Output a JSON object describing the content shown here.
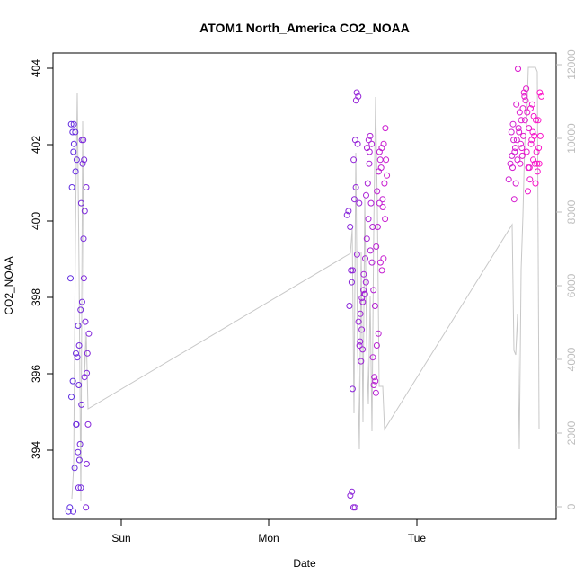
{
  "chart_data": {
    "type": "scatter",
    "title": "ATOM1 North_America CO2_NOAA",
    "xlabel": "Date",
    "ylabel": "CO2_NOAA",
    "x_ticks": [
      "Sun",
      "Mon",
      "Tue"
    ],
    "y_ticks": [
      "394",
      "396",
      "398",
      "400",
      "402",
      "404"
    ],
    "y_ticks_right": [
      "0",
      "2000",
      "4000",
      "6000",
      "8000",
      "10000",
      "12000"
    ],
    "ylim": [
      392.5,
      404.3
    ],
    "ylim_right": [
      0,
      12000
    ],
    "colors": {
      "start": "#5b2be0",
      "end": "#ff17c8",
      "line": "#c8c8c8",
      "right_axis": "#bdbdbd",
      "axis": "#000000"
    },
    "series": [
      {
        "values": [
          392.7,
          392.8,
          395.6,
          396.0,
          398.6,
          400.9,
          401.8,
          402.5,
          402.3,
          402.0,
          401.3,
          392.7,
          393.8,
          394.9,
          402.5,
          402.3,
          401.6,
          397.4,
          396.7,
          396.6,
          395.9,
          394.9,
          394.2,
          394.0,
          393.3,
          393.3,
          394.4,
          395.4,
          396.9,
          397.8,
          398.0,
          399.6,
          400.5,
          401.5,
          401.6,
          402.1,
          402.1,
          400.3,
          400.9,
          398.6,
          397.5,
          396.2,
          396.1,
          392.8,
          396.7,
          397.2,
          393.9,
          394.9
        ]
      },
      {
        "values": [
          400.2,
          400.3,
          399.9,
          398.5,
          397.9,
          398.8,
          395.8,
          393.1,
          393.2,
          392.8,
          392.8,
          398.8,
          400.6,
          400.9,
          401.6,
          402.1,
          403.3,
          403.2,
          403.1,
          402.0,
          400.5,
          399.2,
          397.5,
          397.0,
          397.3,
          396.9,
          396.5,
          396.8,
          397.7,
          398.1,
          398.3,
          398.2,
          398.0,
          398.2,
          398.5,
          398.7,
          399.1,
          399.6,
          400.1,
          400.7,
          401.0,
          401.5,
          401.9,
          402.1,
          402.2,
          402.0,
          401.8,
          400.5,
          399.9,
          399.3,
          399.0,
          398.3,
          397.9,
          396.6,
          396.1,
          395.7,
          395.9,
          396.0,
          396.9,
          397.2,
          399.4,
          399.9,
          400.5,
          400.8,
          401.3,
          401.6,
          401.9,
          401.8,
          401.4,
          400.6,
          399.0,
          398.8,
          399.1,
          400.1,
          400.4,
          401.0,
          401.6,
          402.0,
          402.4,
          401.2
        ]
      },
      {
        "values": [
          401.1,
          401.5,
          401.7,
          402.1,
          402.3,
          402.5,
          401.8,
          401.4,
          400.6,
          401.0,
          401.6,
          401.9,
          402.1,
          402.4,
          403.0,
          403.9,
          402.8,
          402.6,
          402.3,
          402.0,
          401.7,
          401.5,
          401.9,
          402.2,
          402.6,
          402.9,
          403.2,
          403.4,
          403.3,
          403.1,
          402.8,
          402.4,
          401.8,
          401.4,
          401.1,
          400.8,
          401.4,
          402.0,
          402.3,
          402.9,
          403.0,
          402.7,
          402.1,
          401.6,
          401.5,
          401.8,
          402.2,
          402.6,
          401.3,
          401.0,
          401.5,
          401.9,
          402.2,
          402.6,
          403.3,
          403.2,
          401.5
        ]
      }
    ]
  }
}
